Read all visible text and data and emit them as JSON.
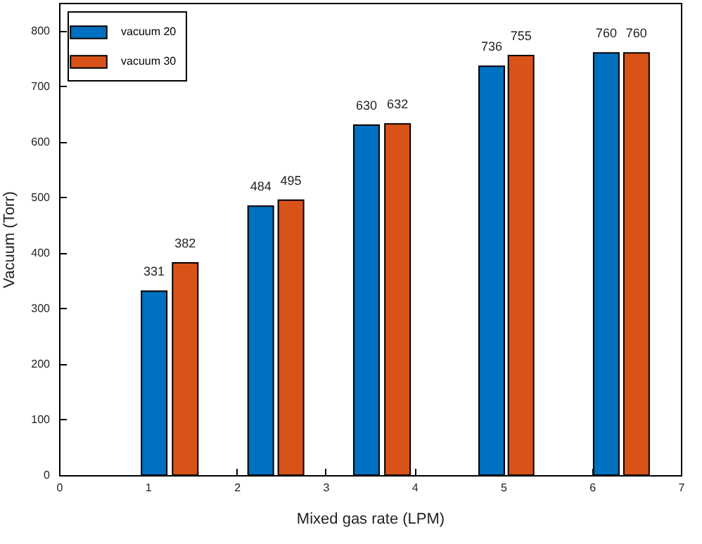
{
  "chart_data": {
    "type": "bar",
    "xlabel": "Mixed gas rate (LPM)",
    "ylabel": "Vacuum (Torr)",
    "xlim": [
      0,
      7
    ],
    "xticks": [
      0,
      1,
      2,
      3,
      4,
      5,
      6,
      7
    ],
    "ylim": [
      0,
      850
    ],
    "yticks": [
      0,
      100,
      200,
      300,
      400,
      500,
      600,
      700,
      800
    ],
    "series": [
      {
        "name": "vacuum 20",
        "color": "#0070c0",
        "x": [
          1.07,
          2.27,
          3.46,
          4.87,
          6.16
        ],
        "values": [
          331,
          484,
          630,
          736,
          760
        ]
      },
      {
        "name": "vacuum 30",
        "color": "#d95319",
        "x": [
          1.42,
          2.61,
          3.81,
          5.2,
          6.5
        ],
        "values": [
          382,
          495,
          632,
          755,
          760
        ]
      }
    ],
    "data_labels": true,
    "grid": false,
    "legend": "top left"
  }
}
